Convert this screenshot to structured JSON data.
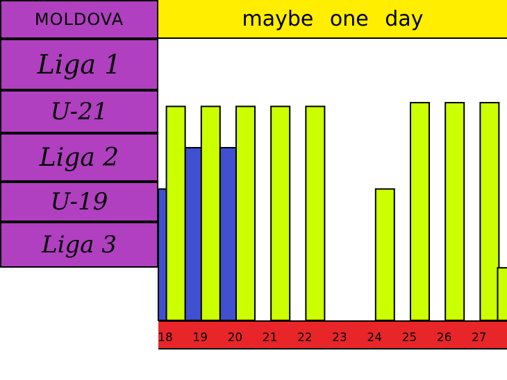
{
  "header": {
    "country": "MOLDOVA",
    "title": "maybe one day"
  },
  "levels": [
    "Liga 1",
    "U-21",
    "Liga 2",
    "U-19",
    "Liga 3"
  ],
  "colors": {
    "levels_bg": "#b040c0",
    "title_bg": "#ffee00",
    "axis_bg": "#e8262a",
    "series_a": "#4050d0",
    "series_b": "#ccff00"
  },
  "chart_data": {
    "type": "bar",
    "categories": [
      "18",
      "19",
      "20",
      "21",
      "22",
      "23",
      "24",
      "25",
      "26",
      "27"
    ],
    "series": [
      {
        "values": [
          3.5,
          4.6,
          4.6,
          null,
          null,
          null,
          null,
          null,
          null,
          null
        ]
      },
      {
        "values": [
          5.7,
          5.7,
          5.7,
          5.7,
          5.7,
          null,
          3.5,
          5.8,
          5.8,
          5.8
        ]
      },
      {
        "values": [
          null,
          null,
          null,
          null,
          null,
          null,
          null,
          null,
          null,
          1.4
        ]
      }
    ],
    "ylim": [
      0,
      7.5
    ],
    "grid": false,
    "legend": "none"
  }
}
